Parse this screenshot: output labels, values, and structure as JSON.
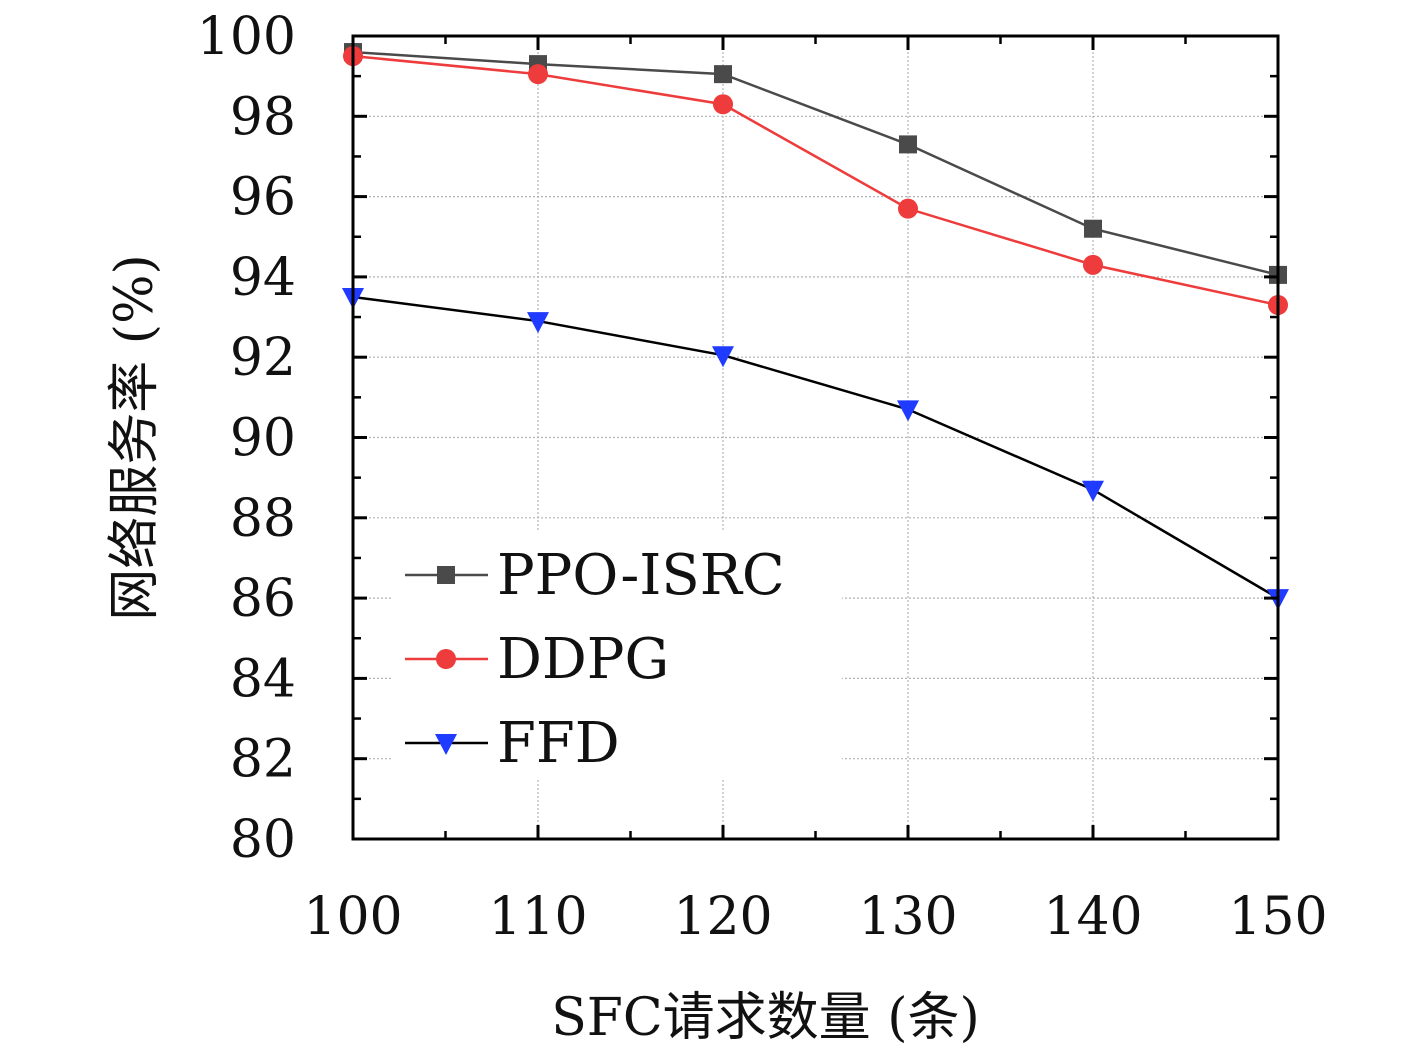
{
  "chart_data": {
    "type": "line",
    "title": "",
    "xlabel": "SFC请求数量 (条)",
    "ylabel": "网络服务率 (%)",
    "x": [
      100,
      110,
      120,
      130,
      140,
      150
    ],
    "x_ticks": [
      "100",
      "110",
      "120",
      "130",
      "140",
      "150"
    ],
    "y_ticks": [
      "80",
      "82",
      "84",
      "86",
      "88",
      "90",
      "92",
      "94",
      "96",
      "98",
      "100"
    ],
    "xlim": [
      100,
      150
    ],
    "ylim": [
      80,
      100
    ],
    "grid": true,
    "legend_position": "lower-left",
    "series": [
      {
        "name": "PPO-ISRC",
        "marker": "square",
        "color": "#4a4a4a",
        "values": [
          99.6,
          99.3,
          99.05,
          97.3,
          95.2,
          94.05
        ]
      },
      {
        "name": "DDPG",
        "marker": "circle",
        "color": "#ee3b3b",
        "values": [
          99.5,
          99.05,
          98.3,
          95.7,
          94.3,
          93.3
        ]
      },
      {
        "name": "FFD",
        "marker": "triangle-down",
        "color": "#1f3bff",
        "line_color": "#000000",
        "values": [
          93.5,
          92.9,
          92.05,
          90.7,
          88.7,
          86.0
        ]
      }
    ]
  }
}
